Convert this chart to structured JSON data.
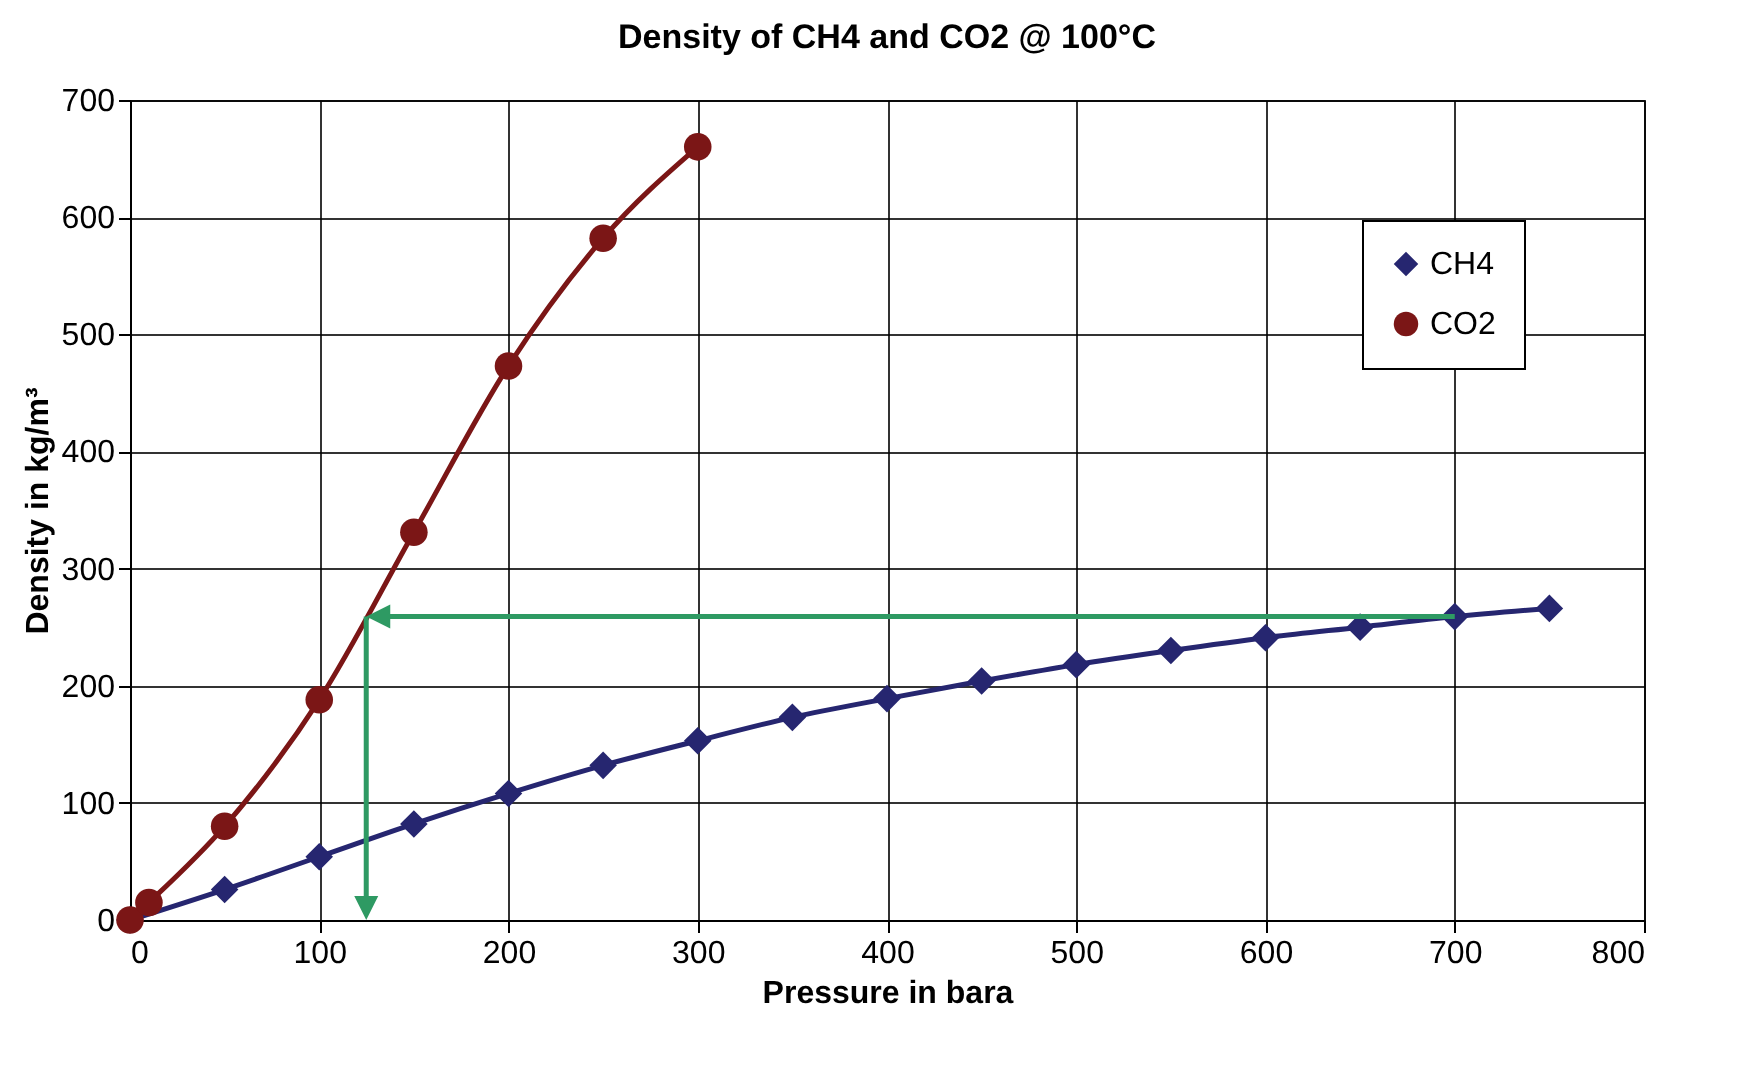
{
  "chart_data": {
    "type": "line",
    "title": "Density of CH4 and CO2 @ 100°C",
    "xlabel": "Pressure in bara",
    "ylabel": "Density in kg/m³",
    "series": [
      {
        "name": "CH4",
        "color": "#262670",
        "marker": "diamond",
        "x": [
          0,
          50,
          100,
          150,
          200,
          250,
          300,
          350,
          400,
          450,
          500,
          550,
          600,
          650,
          700,
          750
        ],
        "values": [
          0,
          26,
          54,
          82,
          108,
          132,
          153,
          173,
          189,
          204,
          218,
          230,
          241,
          250,
          259,
          266
        ]
      },
      {
        "name": "CO2",
        "color": "#7b1616",
        "marker": "circle",
        "x": [
          0,
          10,
          50,
          100,
          150,
          200,
          250,
          300
        ],
        "values": [
          0,
          15,
          80,
          188,
          331,
          473,
          582,
          660
        ]
      }
    ],
    "xlim": [
      0,
      800
    ],
    "xticks": [
      0,
      100,
      200,
      300,
      400,
      500,
      600,
      700,
      800
    ],
    "ylim": [
      0,
      700
    ],
    "yticks": [
      0,
      100,
      200,
      300,
      400,
      500,
      600,
      700
    ],
    "grid": true,
    "legend": "top right",
    "line_style": "solid"
  }
}
